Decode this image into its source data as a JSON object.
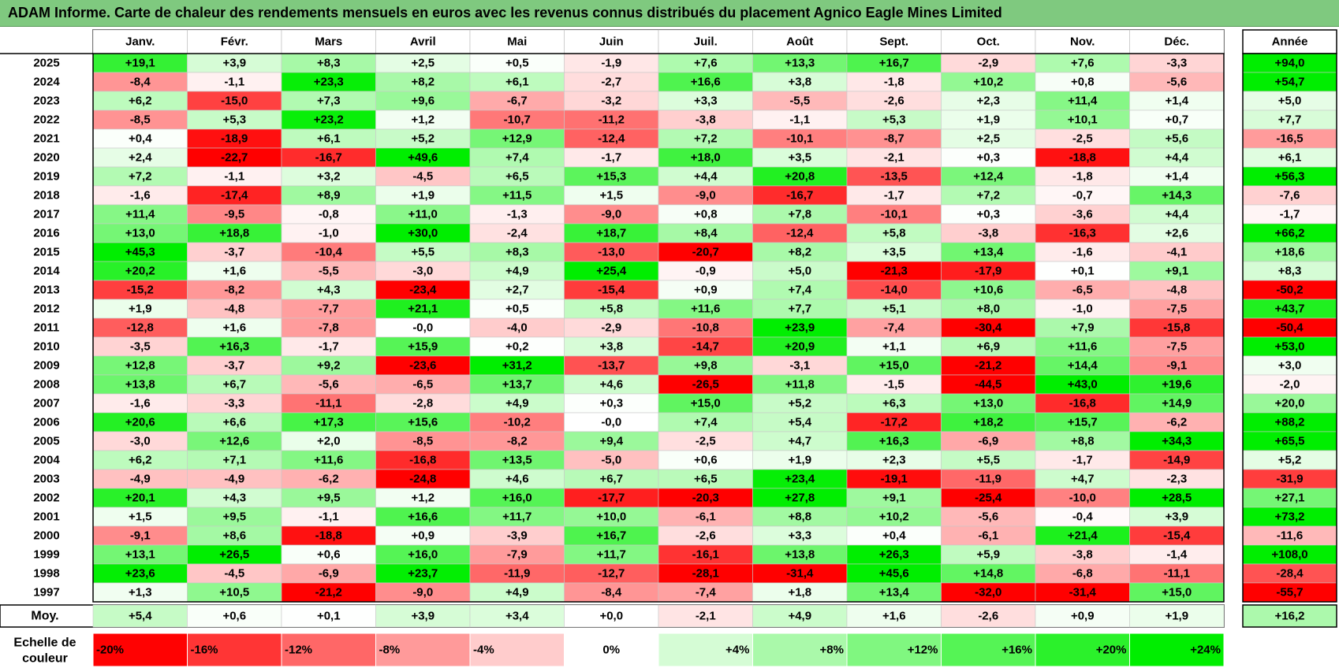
{
  "title": "ADAM Informe. Carte de chaleur des rendements mensuels en euros avec les revenus connus distribués du placement Agnico Eagle Mines Limited",
  "chart_data": {
    "type": "heatmap",
    "columns": [
      "Janv.",
      "Févr.",
      "Mars",
      "Avril",
      "Mai",
      "Juin",
      "Juil.",
      "Août",
      "Sept.",
      "Oct.",
      "Nov.",
      "Déc."
    ],
    "year_column": "Année",
    "rows": [
      {
        "label": "2025",
        "values": [
          "+19,1",
          "+3,9",
          "+8,3",
          "+2,5",
          "+0,5",
          "-1,9",
          "+7,6",
          "+13,3",
          "+16,7",
          "-2,9",
          "+7,6",
          "-3,3"
        ],
        "year": "+94,0"
      },
      {
        "label": "2024",
        "values": [
          "-8,4",
          "-1,1",
          "+23,3",
          "+8,2",
          "+6,1",
          "-2,7",
          "+16,6",
          "+3,8",
          "-1,8",
          "+10,2",
          "+0,8",
          "-5,6"
        ],
        "year": "+54,7"
      },
      {
        "label": "2023",
        "values": [
          "+6,2",
          "-15,0",
          "+7,3",
          "+9,6",
          "-6,7",
          "-3,2",
          "+3,3",
          "-5,5",
          "-2,6",
          "+2,3",
          "+11,4",
          "+1,4"
        ],
        "year": "+5,0"
      },
      {
        "label": "2022",
        "values": [
          "-8,5",
          "+5,3",
          "+23,2",
          "+1,2",
          "-10,7",
          "-11,2",
          "-3,8",
          "-1,1",
          "+5,3",
          "+1,9",
          "+10,1",
          "+0,7"
        ],
        "year": "+7,7"
      },
      {
        "label": "2021",
        "values": [
          "+0,4",
          "-18,9",
          "+6,1",
          "+5,2",
          "+12,9",
          "-12,4",
          "+7,2",
          "-10,1",
          "-8,7",
          "+2,5",
          "-2,5",
          "+5,6"
        ],
        "year": "-16,5"
      },
      {
        "label": "2020",
        "values": [
          "+2,4",
          "-22,7",
          "-16,7",
          "+49,6",
          "+7,4",
          "-1,7",
          "+18,0",
          "+3,5",
          "-2,1",
          "+0,3",
          "-18,8",
          "+4,4"
        ],
        "year": "+6,1"
      },
      {
        "label": "2019",
        "values": [
          "+7,2",
          "-1,1",
          "+3,2",
          "-4,5",
          "+6,5",
          "+15,3",
          "+4,4",
          "+20,8",
          "-13,5",
          "+12,4",
          "-1,8",
          "+1,4"
        ],
        "year": "+56,3"
      },
      {
        "label": "2018",
        "values": [
          "-1,6",
          "-17,4",
          "+8,9",
          "+1,9",
          "+11,5",
          "+1,5",
          "-9,0",
          "-16,7",
          "-1,7",
          "+7,2",
          "-0,7",
          "+14,3"
        ],
        "year": "-7,6"
      },
      {
        "label": "2017",
        "values": [
          "+11,4",
          "-9,5",
          "-0,8",
          "+11,0",
          "-1,3",
          "-9,0",
          "+0,8",
          "+7,8",
          "-10,1",
          "+0,3",
          "-3,6",
          "+4,4"
        ],
        "year": "-1,7"
      },
      {
        "label": "2016",
        "values": [
          "+13,0",
          "+18,8",
          "-1,0",
          "+30,0",
          "-2,4",
          "+18,7",
          "+8,4",
          "-12,4",
          "+5,8",
          "-3,8",
          "-16,3",
          "+2,6"
        ],
        "year": "+66,2"
      },
      {
        "label": "2015",
        "values": [
          "+45,3",
          "-3,7",
          "-10,4",
          "+5,5",
          "+8,3",
          "-13,0",
          "-20,7",
          "+8,2",
          "+3,5",
          "+13,4",
          "-1,6",
          "-4,1"
        ],
        "year": "+18,6"
      },
      {
        "label": "2014",
        "values": [
          "+20,2",
          "+1,6",
          "-5,5",
          "-3,0",
          "+4,9",
          "+25,4",
          "-0,9",
          "+5,0",
          "-21,3",
          "-17,9",
          "+0,1",
          "+9,1"
        ],
        "year": "+8,3"
      },
      {
        "label": "2013",
        "values": [
          "-15,2",
          "-8,2",
          "+4,3",
          "-23,4",
          "+2,7",
          "-15,4",
          "+0,9",
          "+7,4",
          "-14,0",
          "+10,6",
          "-6,5",
          "-4,8"
        ],
        "year": "-50,2"
      },
      {
        "label": "2012",
        "values": [
          "+1,9",
          "-4,8",
          "-7,7",
          "+21,1",
          "+0,5",
          "+5,8",
          "+11,6",
          "+7,7",
          "+5,1",
          "+8,0",
          "-1,0",
          "-7,5"
        ],
        "year": "+43,7"
      },
      {
        "label": "2011",
        "values": [
          "-12,8",
          "+1,6",
          "-7,8",
          "-0,0",
          "-4,0",
          "-2,9",
          "-10,8",
          "+23,9",
          "-7,4",
          "-30,4",
          "+7,9",
          "-15,8"
        ],
        "year": "-50,4"
      },
      {
        "label": "2010",
        "values": [
          "-3,5",
          "+16,3",
          "-1,7",
          "+15,9",
          "+0,2",
          "+3,8",
          "-14,7",
          "+20,9",
          "+1,1",
          "+6,9",
          "+11,6",
          "-7,5"
        ],
        "year": "+53,0"
      },
      {
        "label": "2009",
        "values": [
          "+12,8",
          "-3,7",
          "+9,2",
          "-23,6",
          "+31,2",
          "-13,7",
          "+9,8",
          "-3,1",
          "+15,0",
          "-21,2",
          "+14,4",
          "-9,1"
        ],
        "year": "+3,0"
      },
      {
        "label": "2008",
        "values": [
          "+13,8",
          "+6,7",
          "-5,6",
          "-6,5",
          "+13,7",
          "+4,6",
          "-26,5",
          "+11,8",
          "-1,5",
          "-44,5",
          "+43,0",
          "+19,6"
        ],
        "year": "-2,0"
      },
      {
        "label": "2007",
        "values": [
          "-1,6",
          "-3,3",
          "-11,1",
          "-2,8",
          "+4,9",
          "+0,3",
          "+15,0",
          "+5,2",
          "+6,3",
          "+13,0",
          "-16,8",
          "+14,9"
        ],
        "year": "+20,0"
      },
      {
        "label": "2006",
        "values": [
          "+20,6",
          "+6,6",
          "+17,3",
          "+15,6",
          "-10,2",
          "-0,0",
          "+7,4",
          "+5,4",
          "-17,2",
          "+18,2",
          "+15,7",
          "-6,2"
        ],
        "year": "+88,2"
      },
      {
        "label": "2005",
        "values": [
          "-3,0",
          "+12,6",
          "+2,0",
          "-8,5",
          "-8,2",
          "+9,4",
          "-2,5",
          "+4,7",
          "+16,3",
          "-6,9",
          "+8,8",
          "+34,3"
        ],
        "year": "+65,5"
      },
      {
        "label": "2004",
        "values": [
          "+6,2",
          "+7,1",
          "+11,6",
          "-16,8",
          "+13,5",
          "-5,0",
          "+0,6",
          "+1,9",
          "+2,3",
          "+5,5",
          "-1,7",
          "-14,9"
        ],
        "year": "+5,2"
      },
      {
        "label": "2003",
        "values": [
          "-4,9",
          "-4,9",
          "-6,2",
          "-24,8",
          "+4,6",
          "+6,7",
          "+6,5",
          "+23,4",
          "-19,1",
          "-11,9",
          "+4,7",
          "-2,3"
        ],
        "year": "-31,9"
      },
      {
        "label": "2002",
        "values": [
          "+20,1",
          "+4,3",
          "+9,5",
          "+1,2",
          "+16,0",
          "-17,7",
          "-20,3",
          "+27,8",
          "+9,1",
          "-25,4",
          "-10,0",
          "+28,5"
        ],
        "year": "+27,1"
      },
      {
        "label": "2001",
        "values": [
          "+1,5",
          "+9,5",
          "-1,1",
          "+16,6",
          "+11,7",
          "+10,0",
          "-6,1",
          "+8,8",
          "+10,2",
          "-5,6",
          "-0,4",
          "+3,9"
        ],
        "year": "+73,2"
      },
      {
        "label": "2000",
        "values": [
          "-9,1",
          "+8,6",
          "-18,8",
          "+0,9",
          "-3,9",
          "+16,7",
          "-2,6",
          "+3,3",
          "+0,4",
          "-6,1",
          "+21,4",
          "-15,4"
        ],
        "year": "-11,6"
      },
      {
        "label": "1999",
        "values": [
          "+13,1",
          "+26,5",
          "+0,6",
          "+16,0",
          "-7,9",
          "+11,7",
          "-16,1",
          "+13,8",
          "+26,3",
          "+5,9",
          "-3,8",
          "-1,4"
        ],
        "year": "+108,0"
      },
      {
        "label": "1998",
        "values": [
          "+23,6",
          "-4,5",
          "-6,9",
          "+23,7",
          "-11,9",
          "-12,7",
          "-28,1",
          "-31,4",
          "+45,6",
          "+14,8",
          "-6,8",
          "-11,1"
        ],
        "year": "-28,4"
      },
      {
        "label": "1997",
        "values": [
          "+1,3",
          "+10,5",
          "-21,2",
          "-9,0",
          "+4,9",
          "-8,4",
          "-7,4",
          "+1,8",
          "+13,4",
          "-32,0",
          "-31,4",
          "+15,0"
        ],
        "year": "-55,7"
      }
    ],
    "average": {
      "label": "Moy.",
      "values": [
        "+5,4",
        "+0,6",
        "+0,1",
        "+3,9",
        "+3,4",
        "+0,0",
        "-2,1",
        "+4,9",
        "+1,6",
        "-2,6",
        "+0,9",
        "+1,9"
      ],
      "year": "+16,2"
    },
    "scale": {
      "label_line1": "Echelle de",
      "label_line2": "couleur",
      "steps": [
        "-20%",
        "-16%",
        "-12%",
        "-8%",
        "-4%",
        "0%",
        "+4%",
        "+8%",
        "+12%",
        "+16%",
        "+20%",
        "+24%"
      ]
    },
    "colors": {
      "negative_max": "#ff0000",
      "neutral": "#ffffff",
      "positive_max": "#00ee00",
      "title_bar": "#7fc97f"
    }
  }
}
